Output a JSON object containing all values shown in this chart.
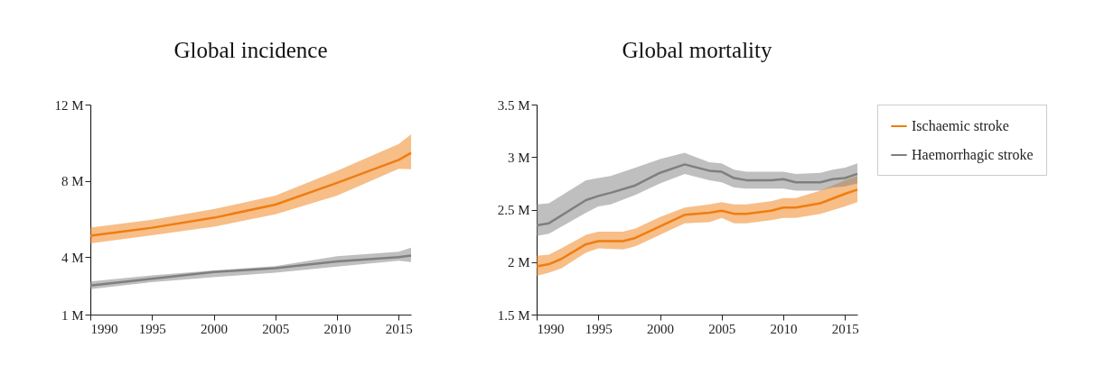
{
  "chart_data": [
    {
      "type": "line",
      "title": "Global incidence",
      "xlim": [
        1990,
        2016
      ],
      "xticks": [
        1990,
        1995,
        2000,
        2005,
        2010,
        2015
      ],
      "ylim": [
        1,
        12
      ],
      "yticks": [
        {
          "value": 1,
          "label": "1 M"
        },
        {
          "value": 4,
          "label": "4 M"
        },
        {
          "value": 8,
          "label": "8 M"
        },
        {
          "value": 12,
          "label": "12 M"
        }
      ],
      "grid": false,
      "series": [
        {
          "color": "#ef7d11",
          "x": [
            1990,
            1995,
            2000,
            2005,
            2010,
            2015,
            2016
          ],
          "values": [
            5.13,
            5.55,
            6.07,
            6.76,
            7.9,
            9.1,
            9.47
          ],
          "lower": [
            4.73,
            5.16,
            5.6,
            6.25,
            7.23,
            8.64,
            8.61
          ],
          "upper": [
            5.55,
            5.97,
            6.52,
            7.23,
            8.53,
            9.94,
            10.44
          ]
        },
        {
          "color": "#7f7f7f",
          "x": [
            1990,
            1995,
            2000,
            2005,
            2010,
            2015,
            2016
          ],
          "values": [
            2.52,
            2.88,
            3.23,
            3.43,
            3.78,
            4.01,
            4.09
          ],
          "lower": [
            2.33,
            2.7,
            2.96,
            3.2,
            3.51,
            3.82,
            3.75
          ],
          "upper": [
            2.73,
            3.05,
            3.31,
            3.54,
            4.06,
            4.29,
            4.5
          ]
        }
      ]
    },
    {
      "type": "line",
      "title": "Global mortality",
      "xlim": [
        1990,
        2016
      ],
      "xticks": [
        1990,
        1995,
        2000,
        2005,
        2010,
        2015
      ],
      "ylim": [
        1.5,
        3.5
      ],
      "yticks": [
        {
          "value": 1.5,
          "label": "1.5 M"
        },
        {
          "value": 2,
          "label": "2 M"
        },
        {
          "value": 2.5,
          "label": "2.5 M"
        },
        {
          "value": 3,
          "label": "3 M"
        },
        {
          "value": 3.5,
          "label": "3.5 M"
        }
      ],
      "grid": false,
      "legend": "top right",
      "series": [
        {
          "name": "Ischaemic stroke",
          "color": "#ef7d11",
          "x": [
            1990,
            1991,
            1992,
            1994,
            1995,
            1997,
            1998,
            2000,
            2002,
            2004,
            2005,
            2006,
            2007,
            2009,
            2010,
            2011,
            2013,
            2015,
            2016
          ],
          "values": [
            1.96,
            1.98,
            2.03,
            2.17,
            2.2,
            2.2,
            2.23,
            2.34,
            2.45,
            2.47,
            2.49,
            2.46,
            2.46,
            2.49,
            2.52,
            2.52,
            2.56,
            2.65,
            2.69
          ],
          "lower": [
            1.87,
            1.9,
            1.94,
            2.09,
            2.13,
            2.12,
            2.15,
            2.26,
            2.37,
            2.38,
            2.42,
            2.37,
            2.37,
            2.4,
            2.42,
            2.42,
            2.46,
            2.53,
            2.57
          ],
          "upper": [
            2.06,
            2.07,
            2.13,
            2.26,
            2.29,
            2.29,
            2.32,
            2.43,
            2.52,
            2.55,
            2.57,
            2.55,
            2.55,
            2.58,
            2.61,
            2.61,
            2.68,
            2.78,
            2.82
          ]
        },
        {
          "name": "Haemorrhagic stroke",
          "color": "#7f7f7f",
          "x": [
            1990,
            1991,
            1994,
            1995,
            1996,
            1998,
            2000,
            2002,
            2004,
            2005,
            2006,
            2007,
            2009,
            2010,
            2011,
            2013,
            2014,
            2015,
            2016
          ],
          "values": [
            2.35,
            2.37,
            2.59,
            2.63,
            2.66,
            2.73,
            2.85,
            2.93,
            2.87,
            2.86,
            2.8,
            2.78,
            2.78,
            2.79,
            2.76,
            2.76,
            2.79,
            2.8,
            2.84
          ],
          "lower": [
            2.25,
            2.27,
            2.47,
            2.53,
            2.55,
            2.64,
            2.75,
            2.84,
            2.78,
            2.76,
            2.71,
            2.7,
            2.7,
            2.7,
            2.68,
            2.68,
            2.71,
            2.72,
            2.75
          ],
          "upper": [
            2.55,
            2.56,
            2.78,
            2.8,
            2.82,
            2.9,
            2.98,
            3.04,
            2.95,
            2.94,
            2.88,
            2.86,
            2.86,
            2.86,
            2.84,
            2.85,
            2.88,
            2.9,
            2.94
          ]
        }
      ]
    }
  ]
}
